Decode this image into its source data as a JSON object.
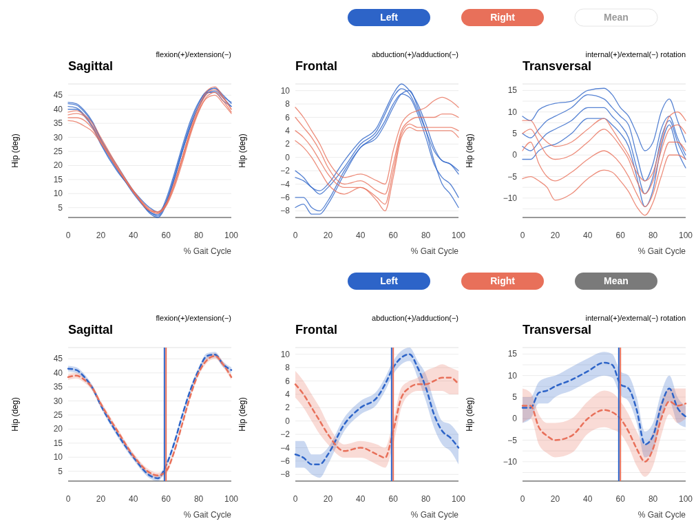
{
  "chart_data": [
    {
      "type": "line",
      "title": "Sagittal",
      "subtitle": "flexion(+)/extension(−)",
      "xlabel": "% Gait Cycle",
      "ylabel": "Hip (deg)",
      "legend": "top right",
      "annotations": [
        "Mean"
      ],
      "grid": "y",
      "xlim": [
        0,
        100
      ],
      "xticks": [
        0,
        20,
        40,
        60,
        80,
        100
      ],
      "ylim": [
        1.5,
        49
      ],
      "yticks": [
        5,
        10,
        15,
        20,
        25,
        30,
        35,
        40,
        45
      ],
      "x": [
        0,
        5,
        10,
        15,
        20,
        30,
        40,
        50,
        55,
        60,
        65,
        70,
        75,
        80,
        85,
        90,
        95,
        100
      ],
      "series": [
        {
          "name": "Left",
          "color": "#2d64c8",
          "values": [
            42,
            41.5,
            39,
            35,
            29,
            19,
            10,
            3.5,
            2,
            7,
            16,
            26,
            35,
            42,
            46.5,
            47.5,
            45,
            42
          ]
        },
        {
          "color": "#2d64c8",
          "values": [
            41,
            40.5,
            38,
            34,
            28,
            18.5,
            10.5,
            3.5,
            2.5,
            8,
            17,
            27,
            36,
            42.5,
            46,
            46,
            43,
            41
          ]
        },
        {
          "color": "#2d64c8",
          "values": [
            40,
            40,
            37.5,
            33.5,
            27.5,
            18,
            11,
            5,
            3.5,
            7,
            15,
            25,
            34,
            41,
            45.5,
            46.5,
            44,
            41
          ]
        },
        {
          "color": "#2d64c8",
          "values": [
            42.5,
            42,
            39.5,
            35.5,
            29.5,
            20,
            11,
            3,
            1.5,
            6,
            15,
            25,
            34,
            41,
            46,
            47.5,
            44.5,
            42.5
          ]
        },
        {
          "name": "Right",
          "color": "#e8705a",
          "values": [
            39,
            39.5,
            38,
            35,
            30,
            20,
            11,
            4.5,
            3.5,
            6,
            13,
            22,
            32,
            40,
            45.5,
            47,
            44,
            40
          ]
        },
        {
          "color": "#e8705a",
          "values": [
            38,
            38.5,
            37.5,
            34,
            29,
            19.5,
            11,
            4,
            3,
            5.5,
            12,
            21,
            31,
            39,
            44.5,
            46,
            43,
            39
          ]
        },
        {
          "color": "#e8705a",
          "values": [
            37,
            37,
            36,
            33,
            28.5,
            19,
            10.5,
            4,
            3,
            6,
            13,
            23,
            33,
            41,
            46.5,
            48,
            44.5,
            40
          ]
        },
        {
          "color": "#e8705a",
          "values": [
            36,
            35.5,
            34,
            32,
            28,
            19,
            10.5,
            4,
            3.5,
            6.5,
            14,
            23,
            32,
            39.5,
            44,
            45,
            42,
            38.5
          ]
        }
      ]
    },
    {
      "type": "line",
      "title": "Frontal",
      "subtitle": "abduction(+)/adduction(−)",
      "xlabel": "% Gait Cycle",
      "ylabel": "Hip (deg)",
      "grid": "y",
      "xlim": [
        0,
        100
      ],
      "xticks": [
        0,
        20,
        40,
        60,
        80,
        100
      ],
      "ylim": [
        -9,
        11
      ],
      "yticks": [
        -8,
        -6,
        -4,
        -2,
        0,
        2,
        4,
        6,
        8,
        10
      ],
      "x": [
        0,
        5,
        10,
        15,
        20,
        30,
        40,
        50,
        55,
        60,
        65,
        70,
        75,
        80,
        85,
        90,
        95,
        100
      ],
      "series": [
        {
          "color": "#2d64c8",
          "values": [
            -2,
            -3,
            -4.5,
            -5,
            -4,
            -0.5,
            2.5,
            4.5,
            7,
            9.5,
            11,
            10,
            8,
            5,
            1.5,
            -0.5,
            -1,
            -2
          ]
        },
        {
          "color": "#2d64c8",
          "values": [
            -3,
            -3.5,
            -4.5,
            -5.5,
            -4.5,
            -1.5,
            2,
            4,
            6.5,
            9,
            10.3,
            9.5,
            7,
            4,
            1,
            -0.5,
            -1,
            -2.5
          ]
        },
        {
          "color": "#2d64c8",
          "values": [
            -6,
            -6,
            -7.5,
            -8,
            -6.5,
            -2,
            1.5,
            3.5,
            5.5,
            8,
            9.5,
            9,
            6.5,
            3,
            -1,
            -3,
            -4,
            -6
          ]
        },
        {
          "color": "#2d64c8",
          "values": [
            -7.5,
            -7,
            -8.5,
            -8.5,
            -7,
            -2.5,
            1.5,
            3,
            5,
            7.5,
            9.5,
            10,
            7.5,
            4,
            -0.5,
            -4,
            -5.5,
            -7.5
          ]
        },
        {
          "color": "#e8705a",
          "values": [
            7.5,
            6,
            4,
            2,
            -0.5,
            -3,
            -2.5,
            -3.5,
            -4,
            1,
            5,
            6.5,
            7,
            7.5,
            8.5,
            9,
            8.5,
            7.5
          ]
        },
        {
          "color": "#e8705a",
          "values": [
            6,
            4.5,
            3,
            1,
            -1.5,
            -4,
            -3.5,
            -5,
            -5.5,
            -1,
            4,
            5.5,
            6,
            6,
            6,
            6.5,
            6.5,
            6
          ]
        },
        {
          "color": "#e8705a",
          "values": [
            4,
            3,
            1.5,
            -0.5,
            -2.5,
            -4.5,
            -4.5,
            -6,
            -7,
            -2,
            3.5,
            5,
            4.5,
            4.5,
            4.5,
            4.5,
            4.5,
            4
          ]
        },
        {
          "color": "#e8705a",
          "values": [
            2.5,
            1.5,
            0,
            -2,
            -4,
            -5.5,
            -4.5,
            -6.5,
            -8,
            -3,
            3,
            4.5,
            4,
            4,
            4,
            4,
            4,
            3
          ]
        }
      ]
    },
    {
      "type": "line",
      "title": "Transversal",
      "subtitle": "internal(+)/external(−) rotation",
      "xlabel": "% Gait Cycle",
      "ylabel": "Hip (deg)",
      "grid": "y",
      "xlim": [
        0,
        100
      ],
      "xticks": [
        0,
        20,
        40,
        60,
        80,
        100
      ],
      "ylim": [
        -14.5,
        16.5
      ],
      "yticks": [
        -10,
        {
          "value": -12.5,
          "label": null
        },
        {
          "value": -7.5,
          "label": null
        },
        -5,
        {
          "value": -2.5,
          "label": null
        },
        0,
        {
          "value": 2.5,
          "label": null
        },
        5,
        {
          "value": 7.5,
          "label": null
        },
        10,
        {
          "value": 12.5,
          "label": null
        },
        15
      ],
      "x": [
        0,
        5,
        10,
        15,
        20,
        30,
        40,
        50,
        55,
        60,
        65,
        70,
        75,
        80,
        85,
        90,
        95,
        100
      ],
      "series": [
        {
          "color": "#2d64c8",
          "values": [
            9,
            8,
            10.5,
            11.5,
            12,
            12.5,
            15,
            15.5,
            14,
            11,
            9,
            5,
            1,
            3,
            10,
            13,
            8,
            3
          ]
        },
        {
          "color": "#2d64c8",
          "values": [
            5,
            4,
            6,
            8,
            9,
            11,
            14,
            13,
            11,
            9,
            7,
            0,
            -6,
            -2,
            6,
            9,
            4,
            0
          ]
        },
        {
          "color": "#2d64c8",
          "values": [
            2,
            1,
            3,
            5,
            6,
            8,
            11,
            11,
            9,
            7,
            4,
            -3,
            -9,
            -5,
            4,
            8,
            3,
            -1
          ]
        },
        {
          "color": "#2d64c8",
          "values": [
            -1,
            -1,
            1,
            2,
            2.5,
            5,
            8.5,
            8.5,
            7,
            5,
            2,
            -5,
            -12,
            -8,
            2,
            7,
            1,
            -3
          ]
        },
        {
          "color": "#e8705a",
          "values": [
            8,
            8,
            5,
            3,
            2,
            3,
            6,
            8.5,
            6,
            3,
            0,
            -4,
            -6,
            -4,
            3,
            9,
            10,
            8
          ]
        },
        {
          "color": "#e8705a",
          "values": [
            5,
            6,
            3,
            0,
            -1,
            0,
            3,
            6,
            4.5,
            2,
            -1,
            -6,
            -9,
            -6,
            1,
            6,
            7,
            5
          ]
        },
        {
          "color": "#e8705a",
          "values": [
            1,
            3,
            -2,
            -5,
            -6,
            -4,
            -1,
            1,
            0,
            -2,
            -5,
            -9,
            -12,
            -9,
            -2,
            3,
            3,
            1
          ]
        },
        {
          "color": "#e8705a",
          "values": [
            -5.5,
            -5,
            -6,
            -7.5,
            -10.5,
            -9,
            -5.5,
            -3.5,
            -4,
            -6,
            -8.5,
            -12,
            -14,
            -11,
            -5,
            0,
            0,
            -1
          ]
        }
      ]
    },
    {
      "type": "line",
      "title": "Sagittal",
      "subtitle": "flexion(+)/extension(−)",
      "xlabel": "% Gait Cycle",
      "ylabel": "Hip (deg)",
      "legend": "top right",
      "annotations": [
        "Mean"
      ],
      "grid": "y",
      "line_style": "dashed",
      "xlim": [
        0,
        100
      ],
      "xticks": [
        0,
        20,
        40,
        60,
        80,
        100
      ],
      "ylim": [
        1.5,
        49
      ],
      "yticks": [
        5,
        10,
        15,
        20,
        25,
        30,
        35,
        40,
        45
      ],
      "ref_lines": [
        {
          "axis": "x",
          "value": 59,
          "color": "#2d64c8"
        },
        {
          "axis": "x",
          "value": 60,
          "color": "#e8705a"
        }
      ],
      "x": [
        0,
        5,
        10,
        15,
        20,
        30,
        40,
        50,
        55,
        60,
        65,
        70,
        75,
        80,
        85,
        90,
        95,
        100
      ],
      "series": [
        {
          "name": "Left",
          "color": "#2d64c8",
          "values": [
            41.5,
            41,
            38.5,
            34.5,
            28.5,
            18.5,
            10,
            3.5,
            2.5,
            7,
            15,
            25,
            34,
            41,
            46,
            46.5,
            43,
            41
          ],
          "lower": [
            40.5,
            40,
            37.5,
            33.5,
            27.5,
            17.5,
            9,
            2.5,
            1.5,
            6,
            14,
            24,
            33,
            40,
            45,
            45.5,
            42,
            40
          ],
          "upper": [
            42.5,
            42,
            39.5,
            35.5,
            29.5,
            19.5,
            11,
            4.5,
            3.5,
            8,
            16,
            26,
            35,
            42,
            47,
            47.5,
            44,
            42
          ]
        },
        {
          "name": "Right",
          "color": "#e8705a",
          "values": [
            38.5,
            39,
            37.5,
            34.5,
            29,
            19.5,
            10.5,
            4.5,
            3.5,
            5,
            12,
            22,
            32,
            40,
            44.5,
            46,
            43,
            38.5
          ],
          "lower": [
            37.5,
            38,
            36.5,
            33.5,
            28,
            18.5,
            9.5,
            3.5,
            2.5,
            4,
            11,
            21,
            31,
            39,
            43.5,
            45,
            42,
            37.5
          ],
          "upper": [
            39.5,
            40,
            38.5,
            35.5,
            30,
            20.5,
            11.5,
            5.5,
            4.5,
            6,
            13,
            23,
            33,
            41,
            45.5,
            47,
            44,
            39.5
          ]
        }
      ]
    },
    {
      "type": "line",
      "title": "Frontal",
      "subtitle": "abduction(+)/adduction(−)",
      "xlabel": "% Gait Cycle",
      "ylabel": "Hip (deg)",
      "grid": "y",
      "line_style": "dashed",
      "xlim": [
        0,
        100
      ],
      "xticks": [
        0,
        20,
        40,
        60,
        80,
        100
      ],
      "ylim": [
        -9,
        11
      ],
      "yticks": [
        -8,
        -6,
        -4,
        -2,
        0,
        2,
        4,
        6,
        8,
        10
      ],
      "ref_lines": [
        {
          "axis": "x",
          "value": 59,
          "color": "#2d64c8"
        },
        {
          "axis": "x",
          "value": 60,
          "color": "#e8705a"
        }
      ],
      "x": [
        0,
        5,
        10,
        15,
        20,
        30,
        40,
        50,
        55,
        60,
        65,
        70,
        75,
        80,
        85,
        90,
        95,
        100
      ],
      "series": [
        {
          "color": "#2d64c8",
          "values": [
            -5,
            -5.5,
            -6.5,
            -6.5,
            -5,
            -0.5,
            2,
            3.5,
            5.5,
            8,
            9.5,
            10,
            8,
            5,
            1,
            -1.5,
            -2.5,
            -4
          ],
          "lower": [
            -7,
            -7,
            -8,
            -8.5,
            -6.5,
            -1.5,
            1,
            2.5,
            4.5,
            7,
            8.5,
            9,
            6.5,
            3,
            -1,
            -3.5,
            -4.5,
            -6.5
          ],
          "upper": [
            -3,
            -3,
            -5,
            -5,
            -4,
            0.5,
            3,
            4.5,
            6.5,
            9,
            10.5,
            11,
            9,
            7,
            3,
            0,
            -0.5,
            -2
          ]
        },
        {
          "color": "#e8705a",
          "values": [
            5.5,
            4,
            2,
            0,
            -2,
            -4.5,
            -4,
            -5,
            -5.5,
            -1.5,
            3.5,
            5,
            5.5,
            5.5,
            6,
            6.5,
            6.5,
            5.5
          ],
          "lower": [
            3.5,
            2,
            0,
            -2,
            -3.5,
            -5.5,
            -5.5,
            -6.5,
            -7,
            -3.5,
            2,
            4,
            4.5,
            4.5,
            4.5,
            4.5,
            4,
            4
          ],
          "upper": [
            7.5,
            6,
            4,
            2,
            -0.5,
            -3.5,
            -3,
            -3.5,
            -4,
            0,
            5,
            6,
            6.5,
            7.5,
            8,
            8.5,
            8,
            7.5
          ]
        }
      ]
    },
    {
      "type": "line",
      "title": "Transversal",
      "subtitle": "internal(+)/external(−) rotation",
      "xlabel": "% Gait Cycle",
      "ylabel": "Hip (deg)",
      "grid": "y",
      "line_style": "dashed",
      "xlim": [
        0,
        100
      ],
      "xticks": [
        0,
        20,
        40,
        60,
        80,
        100
      ],
      "ylim": [
        -14.5,
        16.5
      ],
      "yticks": [
        -10,
        {
          "value": -12.5,
          "label": null
        },
        {
          "value": -7.5,
          "label": null
        },
        -5,
        {
          "value": -2.5,
          "label": null
        },
        0,
        {
          "value": 2.5,
          "label": null
        },
        5,
        {
          "value": 7.5,
          "label": null
        },
        10,
        {
          "value": 12.5,
          "label": null
        },
        15
      ],
      "ref_lines": [
        {
          "axis": "x",
          "value": 59,
          "color": "#2d64c8"
        },
        {
          "axis": "x",
          "value": 60,
          "color": "#e8705a"
        }
      ],
      "x": [
        0,
        5,
        10,
        15,
        20,
        30,
        40,
        50,
        55,
        60,
        65,
        70,
        75,
        80,
        85,
        90,
        95,
        100
      ],
      "series": [
        {
          "color": "#2d64c8",
          "values": [
            2.5,
            2.5,
            6,
            6.5,
            7.5,
            9,
            11,
            13,
            12.5,
            8,
            7,
            2,
            -6,
            -4,
            3,
            7,
            2.5,
            0.5
          ],
          "lower": [
            -1,
            0,
            3.5,
            3.5,
            5,
            6.5,
            8.5,
            10,
            9.5,
            5.5,
            4,
            -1,
            -9,
            -7.5,
            0,
            4,
            -1,
            -2
          ],
          "upper": [
            5,
            5,
            8.5,
            9.5,
            10,
            12,
            14,
            15.5,
            15,
            11,
            10,
            5,
            -3,
            -1,
            6,
            10,
            5,
            3
          ]
        },
        {
          "color": "#e8705a",
          "values": [
            3,
            3,
            -2,
            -4,
            -5,
            -4,
            0,
            2,
            1.5,
            0,
            -3,
            -7,
            -10,
            -7,
            0,
            4,
            3,
            3.5
          ],
          "lower": [
            -1,
            0,
            -6,
            -8,
            -9,
            -8,
            -3.5,
            -2,
            -2.5,
            -3.5,
            -6.5,
            -11,
            -13.5,
            -11,
            -4,
            1,
            -1,
            0
          ],
          "upper": [
            7,
            6,
            1,
            -1,
            -1,
            0,
            4,
            6.5,
            6,
            4,
            1,
            -3,
            -6,
            -3,
            4,
            7,
            7,
            7
          ]
        }
      ]
    }
  ]
}
